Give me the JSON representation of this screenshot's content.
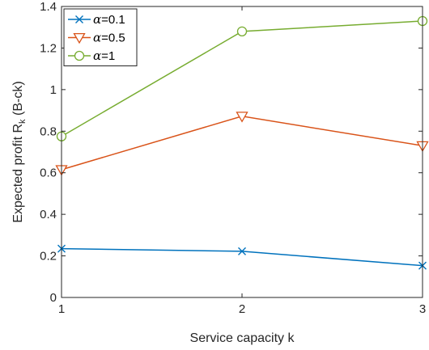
{
  "chart_data": {
    "type": "line",
    "title": "",
    "xlabel": "Service capacity k",
    "ylabel_parts": {
      "main": "Expected profit R",
      "sub": "k",
      "tail": " (B-ck)"
    },
    "x": [
      1,
      2,
      3
    ],
    "xlim": [
      1,
      3
    ],
    "ylim": [
      0,
      1.4
    ],
    "xticks": [
      "1",
      "2",
      "3"
    ],
    "yticks": [
      "0",
      "0.2",
      "0.4",
      "0.6",
      "0.8",
      "1",
      "1.2",
      "1.4"
    ],
    "grid": false,
    "legend_position": "top-left",
    "series": [
      {
        "name_symbol": "α",
        "name_value": "=0.1",
        "values": [
          0.235,
          0.222,
          0.153
        ],
        "color": "#0072BD",
        "marker": "x"
      },
      {
        "name_symbol": "α",
        "name_value": "=0.5",
        "values": [
          0.615,
          0.872,
          0.73
        ],
        "color": "#D95319",
        "marker": "triangle-down"
      },
      {
        "name_symbol": "α",
        "name_value": "=1",
        "values": [
          0.775,
          1.28,
          1.33
        ],
        "color": "#77AC30",
        "marker": "circle"
      }
    ]
  }
}
